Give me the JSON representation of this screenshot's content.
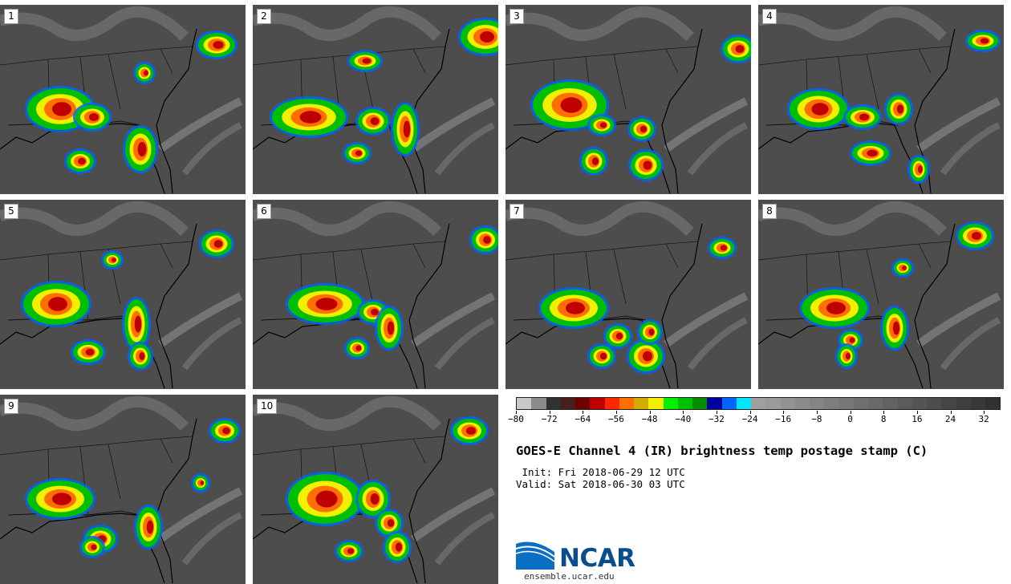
{
  "panels": [
    "1",
    "2",
    "3",
    "4",
    "5",
    "6",
    "7",
    "8",
    "9",
    "10"
  ],
  "colorbar": {
    "colors": [
      "#c8c8c8",
      "#8c8c8c",
      "#323232",
      "#4b1e1e",
      "#6e0000",
      "#be0000",
      "#ff2800",
      "#ff6e00",
      "#d2aa00",
      "#f0f000",
      "#00f000",
      "#00be00",
      "#008c00",
      "#0000a0",
      "#0064ff",
      "#00e6ff",
      "#a0a0a0",
      "#9a9a9a",
      "#939393",
      "#8c8c8c",
      "#858585",
      "#7e7e7e",
      "#777777",
      "#707070",
      "#696969",
      "#626262",
      "#5b5b5b",
      "#545454",
      "#4d4d4d",
      "#464646",
      "#3f3f3f",
      "#383838",
      "#313131"
    ],
    "tick_labels": [
      "−80",
      "−72",
      "−64",
      "−56",
      "−48",
      "−40",
      "−32",
      "−24",
      "−16",
      "−8",
      "0",
      "8",
      "16",
      "24",
      "32"
    ],
    "tick_values": [
      -80,
      -72,
      -64,
      -56,
      -48,
      -40,
      -32,
      -24,
      -16,
      -8,
      0,
      8,
      16,
      24,
      32
    ],
    "min": -80,
    "max": 36
  },
  "title": "GOES-E Channel 4 (IR) brightness temp postage stamp (C)",
  "init": " Init: Fri 2018-06-29 12 UTC",
  "valid": "Valid: Sat 2018-06-30 03 UTC",
  "logo": {
    "name": "NCAR",
    "url": "ensemble.ucar.edu"
  }
}
